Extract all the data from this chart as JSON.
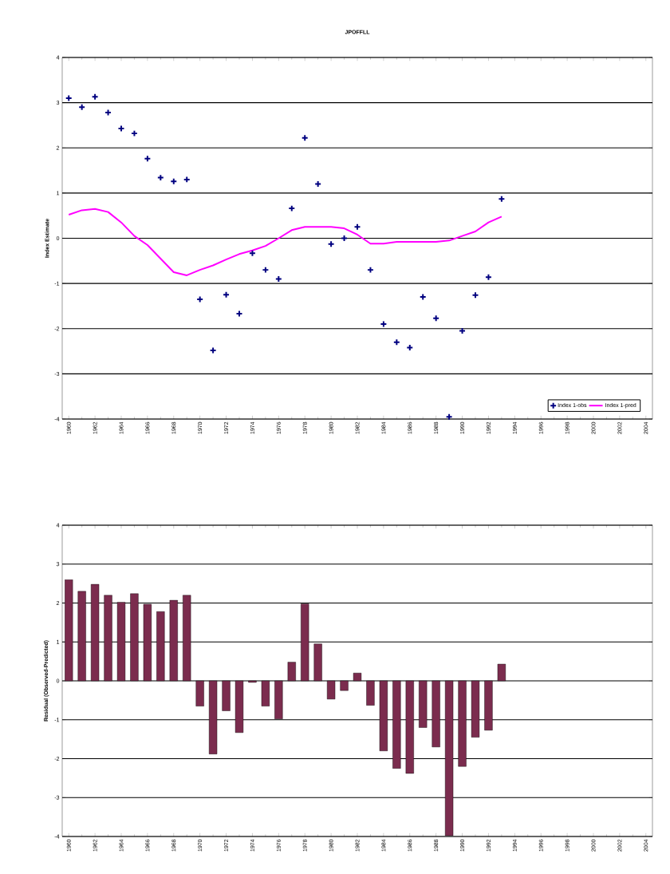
{
  "chart_data": [
    {
      "type": "scatter",
      "title": "JPOFFLL",
      "ylabel": "Index Estimate",
      "x": [
        1960,
        1961,
        1962,
        1963,
        1964,
        1965,
        1966,
        1967,
        1968,
        1969,
        1970,
        1971,
        1972,
        1973,
        1974,
        1975,
        1976,
        1977,
        1978,
        1979,
        1980,
        1981,
        1982,
        1983,
        1984,
        1985,
        1986,
        1987,
        1988,
        1989,
        1990,
        1991,
        1992,
        1993
      ],
      "series": [
        {
          "name": "Index 1-obs",
          "type": "scatter",
          "color": "#000080",
          "marker": "cross",
          "values": [
            3.1,
            2.9,
            3.13,
            2.78,
            2.43,
            2.32,
            1.76,
            1.34,
            1.26,
            1.3,
            -1.35,
            -2.48,
            -1.25,
            -1.67,
            -0.33,
            -0.7,
            -0.9,
            0.66,
            2.22,
            1.2,
            -0.13,
            0,
            0.25,
            -0.7,
            -1.9,
            -2.3,
            -2.42,
            -1.3,
            -1.77,
            -3.95,
            -2.05,
            -1.26,
            -0.86,
            0.87
          ]
        },
        {
          "name": "Index 1-pred",
          "type": "line",
          "color": "#ff00ff",
          "marker": "none",
          "line_style": "solid",
          "values": [
            0.52,
            0.62,
            0.65,
            0.58,
            0.35,
            0.05,
            -0.15,
            -0.45,
            -0.75,
            -0.82,
            -0.7,
            -0.6,
            -0.47,
            -0.35,
            -0.27,
            -0.17,
            0,
            0.18,
            0.25,
            0.25,
            0.25,
            0.22,
            0.08,
            -0.12,
            -0.12,
            -0.08,
            -0.08,
            -0.08,
            -0.08,
            -0.05,
            0.05,
            0.15,
            0.35,
            0.48
          ]
        }
      ],
      "xlim": [
        1959.5,
        2004.5
      ],
      "xticks": [
        1960,
        1962,
        1964,
        1966,
        1968,
        1970,
        1972,
        1974,
        1976,
        1978,
        1980,
        1982,
        1984,
        1986,
        1988,
        1990,
        1992,
        1994,
        1996,
        1998,
        2000,
        2002,
        2004
      ],
      "ylim": [
        -4,
        4
      ],
      "yticks": [
        -4,
        -3,
        -2,
        -1,
        0,
        1,
        2,
        3,
        4
      ],
      "grid": "y",
      "legend": "bottom right"
    },
    {
      "type": "bar",
      "ylabel": "Residual (Observed-Predicted)",
      "x": [
        1960,
        1961,
        1962,
        1963,
        1964,
        1965,
        1966,
        1967,
        1968,
        1969,
        1970,
        1971,
        1972,
        1973,
        1974,
        1975,
        1976,
        1977,
        1978,
        1979,
        1980,
        1981,
        1982,
        1983,
        1984,
        1985,
        1986,
        1987,
        1988,
        1989,
        1990,
        1991,
        1992,
        1993
      ],
      "color": "#7b2c4e",
      "values": [
        2.6,
        2.3,
        2.48,
        2.2,
        2.02,
        2.24,
        1.97,
        1.78,
        2.07,
        2.2,
        -0.65,
        -1.88,
        -0.77,
        -1.33,
        -0.04,
        -0.65,
        -0.98,
        0.48,
        1.98,
        0.95,
        -0.47,
        -0.25,
        0.2,
        -0.63,
        -1.8,
        -2.25,
        -2.38,
        -1.2,
        -1.7,
        -3.98,
        -2.2,
        -1.45,
        -1.27,
        0.43
      ],
      "xlim": [
        1959.5,
        2004.5
      ],
      "xticks": [
        1960,
        1962,
        1964,
        1966,
        1968,
        1970,
        1972,
        1974,
        1976,
        1978,
        1980,
        1982,
        1984,
        1986,
        1988,
        1990,
        1992,
        1994,
        1996,
        1998,
        2000,
        2002,
        2004
      ],
      "ylim": [
        -4,
        4
      ],
      "yticks": [
        -4,
        -3,
        -2,
        -1,
        0,
        1,
        2,
        3,
        4
      ],
      "grid": "y",
      "legend": false
    }
  ]
}
